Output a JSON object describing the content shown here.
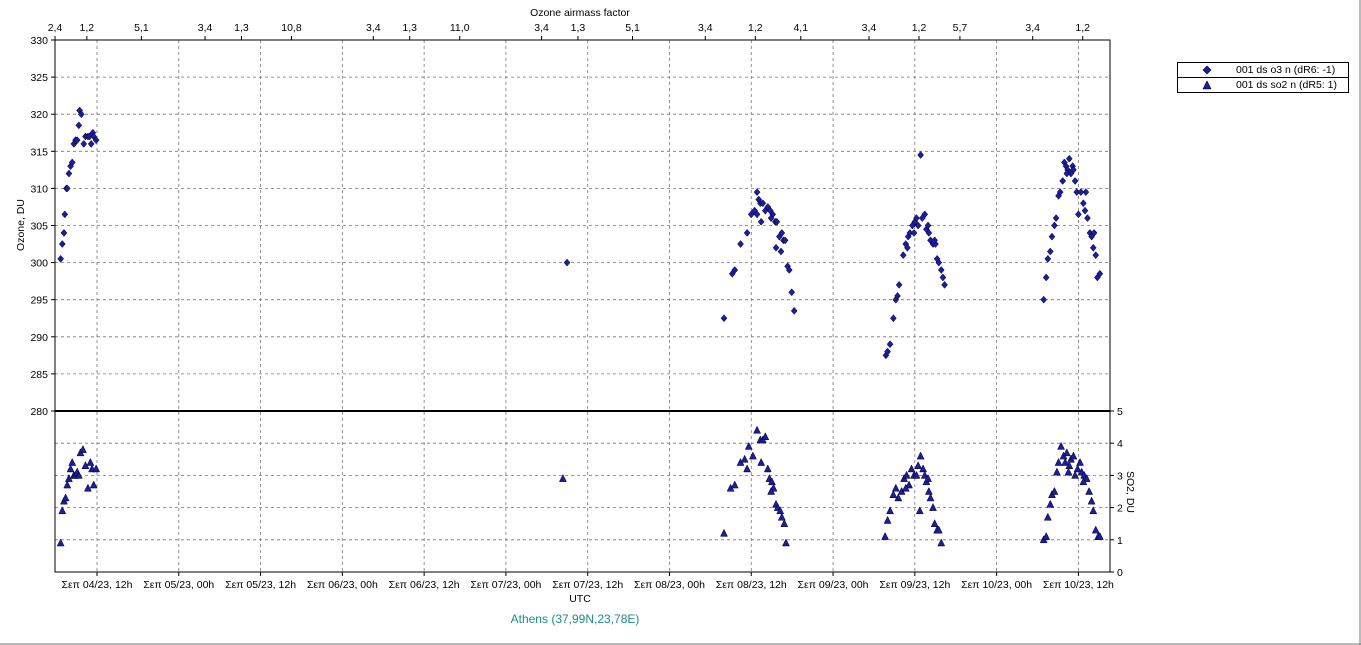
{
  "chart_data": {
    "type": "scatter",
    "top_axis_label": "Ozone airmass factor",
    "top_axis_ticks": [
      {
        "x": 0.0,
        "label": "2,4"
      },
      {
        "x": 0.35,
        "label": "1,2"
      },
      {
        "x": 0.95,
        "label": "5,1"
      },
      {
        "x": 1.65,
        "label": "3,4"
      },
      {
        "x": 2.05,
        "label": "1,3"
      },
      {
        "x": 2.6,
        "label": "10,8"
      },
      {
        "x": 3.5,
        "label": "3,4"
      },
      {
        "x": 3.9,
        "label": "1,3"
      },
      {
        "x": 4.45,
        "label": "11,0"
      },
      {
        "x": 5.35,
        "label": "3,4"
      },
      {
        "x": 5.75,
        "label": "1,3"
      },
      {
        "x": 6.35,
        "label": "5,1"
      },
      {
        "x": 7.15,
        "label": "3,4"
      },
      {
        "x": 7.7,
        "label": "1,2"
      },
      {
        "x": 8.2,
        "label": "4,1"
      },
      {
        "x": 8.95,
        "label": "3,4"
      },
      {
        "x": 9.5,
        "label": "1,2"
      },
      {
        "x": 9.95,
        "label": "5,7"
      },
      {
        "x": 10.75,
        "label": "3,4"
      },
      {
        "x": 11.3,
        "label": "1,2"
      }
    ],
    "x_axis_label": "UTC",
    "x_tick_labels": [
      "Σεπ 04/23, 12h",
      "Σεπ 05/23, 00h",
      "Σεπ 05/23, 12h",
      "Σεπ 06/23, 00h",
      "Σεπ 06/23, 12h",
      "Σεπ 07/23, 00h",
      "Σεπ 07/23, 12h",
      "Σεπ 08/23, 00h",
      "Σεπ 08/23, 12h",
      "Σεπ 09/23, 00h",
      "Σεπ 09/23, 12h",
      "Σεπ 10/23, 00h",
      "Σεπ 10/23, 12h"
    ],
    "x_range": [
      0,
      11.6
    ],
    "station_label": "Athens (37,99N,23,78E)",
    "panels": [
      {
        "name": "ozone",
        "ylabel": "Ozone, DU",
        "y_axis_side": "left",
        "ylim": [
          280,
          330
        ],
        "y_ticks": [
          280,
          285,
          290,
          295,
          300,
          305,
          310,
          315,
          320,
          325,
          330
        ],
        "grid": true
      },
      {
        "name": "so2",
        "ylabel": "SO2, DU",
        "y_axis_side": "right",
        "ylim": [
          0,
          5
        ],
        "y_ticks": [
          0,
          1,
          2,
          3,
          4,
          5
        ],
        "grid": true
      }
    ],
    "legend_position": "right",
    "series": [
      {
        "name": "001 ds o3  n (dR6: -1)",
        "marker": "diamond",
        "color": "#1c1ca8",
        "panel": "ozone",
        "points": [
          [
            0.02,
            300.5
          ],
          [
            0.04,
            302.5
          ],
          [
            0.06,
            304
          ],
          [
            0.07,
            306.5
          ],
          [
            0.09,
            310
          ],
          [
            0.1,
            310
          ],
          [
            0.12,
            312
          ],
          [
            0.14,
            313
          ],
          [
            0.16,
            313.5
          ],
          [
            0.18,
            316
          ],
          [
            0.2,
            316.5
          ],
          [
            0.22,
            316.5
          ],
          [
            0.24,
            318.5
          ],
          [
            0.25,
            320.5
          ],
          [
            0.27,
            320
          ],
          [
            0.3,
            316
          ],
          [
            0.32,
            317
          ],
          [
            0.35,
            317
          ],
          [
            0.37,
            317
          ],
          [
            0.39,
            316
          ],
          [
            0.41,
            317.5
          ],
          [
            0.42,
            317
          ],
          [
            0.45,
            316.5
          ],
          [
            6.15,
            300
          ],
          [
            8.05,
            292.5
          ],
          [
            8.15,
            298.5
          ],
          [
            8.18,
            299
          ],
          [
            8.25,
            302.5
          ],
          [
            8.33,
            304
          ],
          [
            8.38,
            306.5
          ],
          [
            8.42,
            307
          ],
          [
            8.45,
            309.5
          ],
          [
            8.47,
            308.5
          ],
          [
            8.49,
            308
          ],
          [
            8.52,
            308
          ],
          [
            8.55,
            307
          ],
          [
            8.58,
            307.5
          ],
          [
            8.61,
            307
          ],
          [
            8.64,
            306.5
          ],
          [
            8.67,
            305.5
          ],
          [
            8.69,
            305.5
          ],
          [
            8.72,
            303.5
          ],
          [
            8.75,
            304
          ],
          [
            8.77,
            303
          ],
          [
            8.79,
            303
          ],
          [
            8.82,
            299.5
          ],
          [
            8.84,
            299
          ],
          [
            8.87,
            296
          ],
          [
            8.9,
            293.5
          ],
          [
            8.45,
            306.5
          ],
          [
            8.5,
            305.5
          ],
          [
            8.62,
            306
          ],
          [
            8.68,
            302
          ],
          [
            8.74,
            301.5
          ],
          [
            10.01,
            287.5
          ],
          [
            10.03,
            288
          ],
          [
            10.06,
            289
          ],
          [
            10.1,
            292.5
          ],
          [
            10.13,
            295
          ],
          [
            10.15,
            295.5
          ],
          [
            10.17,
            297
          ],
          [
            10.22,
            301
          ],
          [
            10.25,
            302.5
          ],
          [
            10.28,
            303.5
          ],
          [
            10.3,
            304
          ],
          [
            10.33,
            305
          ],
          [
            10.36,
            305.5
          ],
          [
            10.38,
            306
          ],
          [
            10.4,
            305
          ],
          [
            10.43,
            314.5
          ],
          [
            10.45,
            306
          ],
          [
            10.48,
            306.5
          ],
          [
            10.5,
            304.5
          ],
          [
            10.53,
            304
          ],
          [
            10.55,
            303
          ],
          [
            10.58,
            302.5
          ],
          [
            10.61,
            302.5
          ],
          [
            10.63,
            300.5
          ],
          [
            10.65,
            300
          ],
          [
            10.68,
            299
          ],
          [
            10.7,
            298
          ],
          [
            10.72,
            297
          ],
          [
            10.27,
            302
          ],
          [
            10.35,
            304
          ],
          [
            10.52,
            305
          ],
          [
            10.6,
            303
          ],
          [
            11.92,
            295
          ],
          [
            11.95,
            298
          ],
          [
            11.97,
            300.5
          ],
          [
            12.0,
            301.5
          ],
          [
            12.02,
            303.5
          ],
          [
            12.05,
            305
          ],
          [
            12.07,
            306
          ],
          [
            12.1,
            309
          ],
          [
            12.12,
            309.5
          ],
          [
            12.15,
            311
          ],
          [
            12.17,
            313.5
          ],
          [
            12.19,
            313
          ],
          [
            12.21,
            312.5
          ],
          [
            12.23,
            314
          ],
          [
            12.25,
            312
          ],
          [
            12.27,
            313
          ],
          [
            12.3,
            311
          ],
          [
            12.32,
            309.5
          ],
          [
            12.34,
            306.5
          ],
          [
            12.37,
            309.5
          ],
          [
            12.4,
            308
          ],
          [
            12.43,
            309.5
          ],
          [
            12.45,
            306
          ],
          [
            12.48,
            304
          ],
          [
            12.5,
            303.5
          ],
          [
            12.52,
            302
          ],
          [
            12.55,
            301
          ],
          [
            12.57,
            298
          ],
          [
            12.6,
            298.5
          ],
          [
            12.2,
            312
          ],
          [
            12.28,
            312.5
          ],
          [
            12.42,
            307
          ],
          [
            12.53,
            304
          ]
        ]
      },
      {
        "name": "001 ds so2 n (dR5: 1)",
        "marker": "triangle",
        "color": "#1c1ca8",
        "panel": "so2",
        "points": [
          [
            0.02,
            0.9
          ],
          [
            0.04,
            1.9
          ],
          [
            0.06,
            2.2
          ],
          [
            0.08,
            2.3
          ],
          [
            0.1,
            2.7
          ],
          [
            0.12,
            2.9
          ],
          [
            0.14,
            3.2
          ],
          [
            0.16,
            3.4
          ],
          [
            0.18,
            3.0
          ],
          [
            0.2,
            3.0
          ],
          [
            0.22,
            3.1
          ],
          [
            0.24,
            3.0
          ],
          [
            0.26,
            3.7
          ],
          [
            0.29,
            3.8
          ],
          [
            0.32,
            3.3
          ],
          [
            0.35,
            2.6
          ],
          [
            0.38,
            3.4
          ],
          [
            0.4,
            3.2
          ],
          [
            0.42,
            2.7
          ],
          [
            0.45,
            3.2
          ],
          [
            6.1,
            2.9
          ],
          [
            8.05,
            1.2
          ],
          [
            8.13,
            2.6
          ],
          [
            8.18,
            2.7
          ],
          [
            8.25,
            3.4
          ],
          [
            8.3,
            3.5
          ],
          [
            8.35,
            3.9
          ],
          [
            8.4,
            3.6
          ],
          [
            8.45,
            4.4
          ],
          [
            8.49,
            4.1
          ],
          [
            8.52,
            4.1
          ],
          [
            8.55,
            4.2
          ],
          [
            8.58,
            3.2
          ],
          [
            8.6,
            2.9
          ],
          [
            8.63,
            2.8
          ],
          [
            8.65,
            2.6
          ],
          [
            8.68,
            2.1
          ],
          [
            8.7,
            2.0
          ],
          [
            8.73,
            1.9
          ],
          [
            8.75,
            1.7
          ],
          [
            8.78,
            1.5
          ],
          [
            8.8,
            0.9
          ],
          [
            8.33,
            3.2
          ],
          [
            8.5,
            3.4
          ],
          [
            8.62,
            2.5
          ],
          [
            10.0,
            1.1
          ],
          [
            10.03,
            1.6
          ],
          [
            10.06,
            1.9
          ],
          [
            10.1,
            2.4
          ],
          [
            10.13,
            2.6
          ],
          [
            10.16,
            2.3
          ],
          [
            10.2,
            2.5
          ],
          [
            10.23,
            2.9
          ],
          [
            10.26,
            3.0
          ],
          [
            10.29,
            2.7
          ],
          [
            10.32,
            3.2
          ],
          [
            10.35,
            3.0
          ],
          [
            10.38,
            3.0
          ],
          [
            10.4,
            3.3
          ],
          [
            10.43,
            3.6
          ],
          [
            10.46,
            3.2
          ],
          [
            10.48,
            3.0
          ],
          [
            10.5,
            2.8
          ],
          [
            10.53,
            2.5
          ],
          [
            10.55,
            2.3
          ],
          [
            10.58,
            2.0
          ],
          [
            10.6,
            1.5
          ],
          [
            10.63,
            1.3
          ],
          [
            10.65,
            1.3
          ],
          [
            10.68,
            0.9
          ],
          [
            10.25,
            2.6
          ],
          [
            10.42,
            1.9
          ],
          [
            10.52,
            2.9
          ],
          [
            11.92,
            1.0
          ],
          [
            11.95,
            1.1
          ],
          [
            11.97,
            1.7
          ],
          [
            12.0,
            2.1
          ],
          [
            12.02,
            2.4
          ],
          [
            12.05,
            2.5
          ],
          [
            12.08,
            3.1
          ],
          [
            12.1,
            3.4
          ],
          [
            12.13,
            3.9
          ],
          [
            12.16,
            3.6
          ],
          [
            12.18,
            3.4
          ],
          [
            12.2,
            3.7
          ],
          [
            12.23,
            3.3
          ],
          [
            12.25,
            3.5
          ],
          [
            12.28,
            3.6
          ],
          [
            12.3,
            3.0
          ],
          [
            12.33,
            3.2
          ],
          [
            12.36,
            3.4
          ],
          [
            12.38,
            3.1
          ],
          [
            12.41,
            3.0
          ],
          [
            12.44,
            2.9
          ],
          [
            12.47,
            2.5
          ],
          [
            12.5,
            2.2
          ],
          [
            12.52,
            1.9
          ],
          [
            12.55,
            1.3
          ],
          [
            12.58,
            1.1
          ],
          [
            12.6,
            1.1
          ],
          [
            12.22,
            3.1
          ],
          [
            12.4,
            2.8
          ]
        ]
      }
    ]
  }
}
